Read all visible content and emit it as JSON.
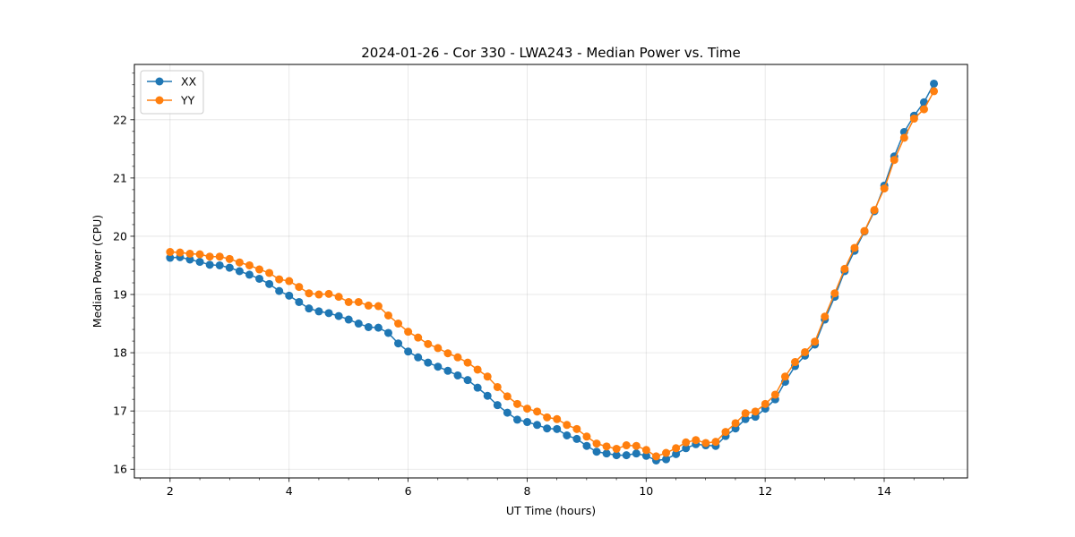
{
  "chart_data": {
    "type": "line",
    "title": "2024-01-26 - Cor 330 - LWA243 - Median Power vs. Time",
    "xlabel": "UT Time (hours)",
    "ylabel": "Median Power (CPU)",
    "xlim": [
      1.4,
      15.4
    ],
    "ylim": [
      15.85,
      22.95
    ],
    "xticks": [
      2,
      4,
      6,
      8,
      10,
      12,
      14
    ],
    "xtick_labels": [
      "2",
      "4",
      "6",
      "8",
      "10",
      "12",
      "14"
    ],
    "yticks": [
      16,
      17,
      18,
      19,
      20,
      21,
      22
    ],
    "ytick_labels": [
      "16",
      "17",
      "18",
      "19",
      "20",
      "21",
      "22"
    ],
    "grid": true,
    "legend_position": "top-left",
    "x_start": 2.0,
    "x_step": 0.1667,
    "series": [
      {
        "name": "XX",
        "color": "#1f77b4",
        "values": [
          19.63,
          19.64,
          19.6,
          19.56,
          19.51,
          19.5,
          19.46,
          19.4,
          19.34,
          19.27,
          19.18,
          19.06,
          18.98,
          18.87,
          18.76,
          18.71,
          18.68,
          18.63,
          18.57,
          18.5,
          18.44,
          18.43,
          18.34,
          18.16,
          18.02,
          17.92,
          17.83,
          17.76,
          17.69,
          17.61,
          17.53,
          17.4,
          17.26,
          17.1,
          16.97,
          16.85,
          16.81,
          16.76,
          16.7,
          16.69,
          16.58,
          16.52,
          16.4,
          16.3,
          16.27,
          16.24,
          16.24,
          16.27,
          16.23,
          16.15,
          16.17,
          16.26,
          16.36,
          16.43,
          16.41,
          16.4,
          16.57,
          16.7,
          16.86,
          16.9,
          17.04,
          17.2,
          17.5,
          17.77,
          17.95,
          18.14,
          18.57,
          18.96,
          19.4,
          19.75,
          20.08,
          20.43,
          20.87,
          21.37,
          21.79,
          22.07,
          22.3,
          22.62
        ]
      },
      {
        "name": "YY",
        "color": "#ff7f0e",
        "values": [
          19.73,
          19.72,
          19.7,
          19.69,
          19.65,
          19.65,
          19.61,
          19.55,
          19.5,
          19.43,
          19.37,
          19.26,
          19.23,
          19.13,
          19.02,
          19.0,
          19.01,
          18.96,
          18.87,
          18.87,
          18.81,
          18.8,
          18.64,
          18.5,
          18.36,
          18.26,
          18.15,
          18.08,
          17.99,
          17.92,
          17.83,
          17.71,
          17.59,
          17.41,
          17.25,
          17.12,
          17.04,
          16.99,
          16.89,
          16.86,
          16.76,
          16.69,
          16.56,
          16.44,
          16.39,
          16.35,
          16.41,
          16.4,
          16.33,
          16.22,
          16.28,
          16.36,
          16.46,
          16.5,
          16.45,
          16.47,
          16.64,
          16.79,
          16.96,
          16.99,
          17.12,
          17.28,
          17.59,
          17.84,
          18.01,
          18.19,
          18.62,
          19.02,
          19.44,
          19.8,
          20.09,
          20.45,
          20.82,
          21.31,
          21.69,
          22.02,
          22.18,
          22.49
        ]
      }
    ]
  }
}
